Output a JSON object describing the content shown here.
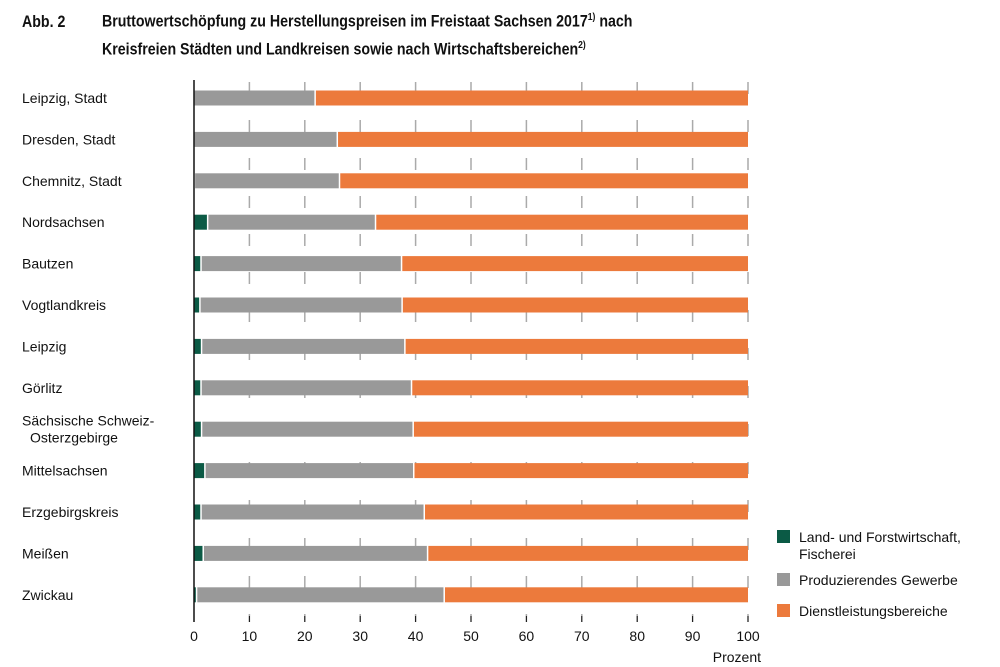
{
  "title": {
    "label": "Abb. 2",
    "line1": "Bruttowertschöpfung zu Herstellungspreisen im Freistaat Sachsen 2017",
    "sup1": "1)",
    "line1_end": " nach",
    "line2": "Kreisfreien Städten und Landkreisen sowie nach Wirtschaftsbereichen",
    "sup2": "2)"
  },
  "chart_data": {
    "type": "bar",
    "orientation": "horizontal",
    "stacked": true,
    "categories": [
      "Leipzig, Stadt",
      "Dresden, Stadt",
      "Chemnitz, Stadt",
      "Nordsachsen",
      "Bautzen",
      "Vogtlandkreis",
      "Leipzig",
      "Görlitz",
      "Sächsische Schweiz-\nOsterzgebirge",
      "Mittelsachsen",
      "Erzgebirgskreis",
      "Meißen",
      "Zwickau"
    ],
    "series": [
      {
        "name": "Land- und Forstwirtschaft, Fischerei",
        "color": "#0b5a45",
        "values": [
          0.1,
          0.1,
          0.2,
          2.6,
          1.4,
          1.2,
          1.5,
          1.4,
          1.5,
          2.1,
          1.4,
          1.8,
          0.6
        ]
      },
      {
        "name": "Produzierendes Gewerbe",
        "color": "#999999",
        "values": [
          21.9,
          25.9,
          26.2,
          30.3,
          36.2,
          36.5,
          36.7,
          38.0,
          38.2,
          37.7,
          40.3,
          40.5,
          44.7
        ]
      },
      {
        "name": "Dienstleistungsbereiche",
        "color": "#ec7a3c",
        "values": [
          78.0,
          74.0,
          73.6,
          67.1,
          62.4,
          62.3,
          61.8,
          60.6,
          60.3,
          60.2,
          58.3,
          57.7,
          54.7
        ]
      }
    ],
    "xlim": [
      0,
      100
    ],
    "xticks": [
      0,
      10,
      20,
      30,
      40,
      50,
      60,
      70,
      80,
      90,
      100
    ],
    "xlabel": "Prozent",
    "grid": "vertical dashed",
    "legend": "bottom-right"
  }
}
